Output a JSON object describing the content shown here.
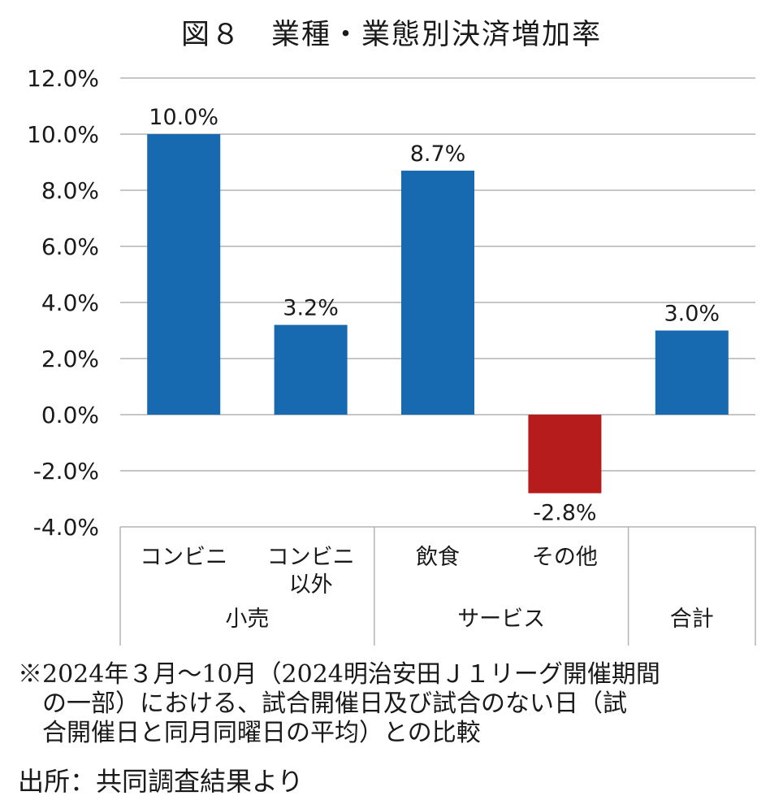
{
  "title": "図８　業種・業態別決済増加率",
  "chart_data": {
    "type": "bar",
    "categories": [
      "コンビニ",
      "コンビニ以外",
      "飲食",
      "その他",
      "合計"
    ],
    "category_lines": [
      [
        "コンビニ"
      ],
      [
        "コンビニ",
        "以外"
      ],
      [
        "飲食"
      ],
      [
        "その他"
      ],
      [
        ""
      ]
    ],
    "groups": [
      {
        "label": "小売",
        "categories": [
          "コンビニ",
          "コンビニ以外"
        ]
      },
      {
        "label": "サービス",
        "categories": [
          "飲食",
          "その他"
        ]
      },
      {
        "label": "合計",
        "categories": [
          "合計"
        ]
      }
    ],
    "values": [
      10.0,
      3.2,
      8.7,
      -2.8,
      3.0
    ],
    "data_labels": [
      "10.0%",
      "3.2%",
      "8.7%",
      "-2.8%",
      "3.0%"
    ],
    "bar_colors": [
      "#1769b0",
      "#1769b0",
      "#1769b0",
      "#b71c1c",
      "#1769b0"
    ],
    "ylim": [
      -4.0,
      12.0
    ],
    "yticks": [
      "12.0%",
      "10.0%",
      "8.0%",
      "6.0%",
      "4.0%",
      "2.0%",
      "0.0%",
      "-2.0%",
      "-4.0%"
    ],
    "grid": true
  },
  "notes": [
    "※2024年３月～10月（2024明治安田Ｊ１リーグ開催期間",
    "の一部）における、試合開催日及び試合のない日（試",
    "合開催日と同月同曜日の平均）との比較"
  ],
  "source": "出所：共同調査結果より"
}
